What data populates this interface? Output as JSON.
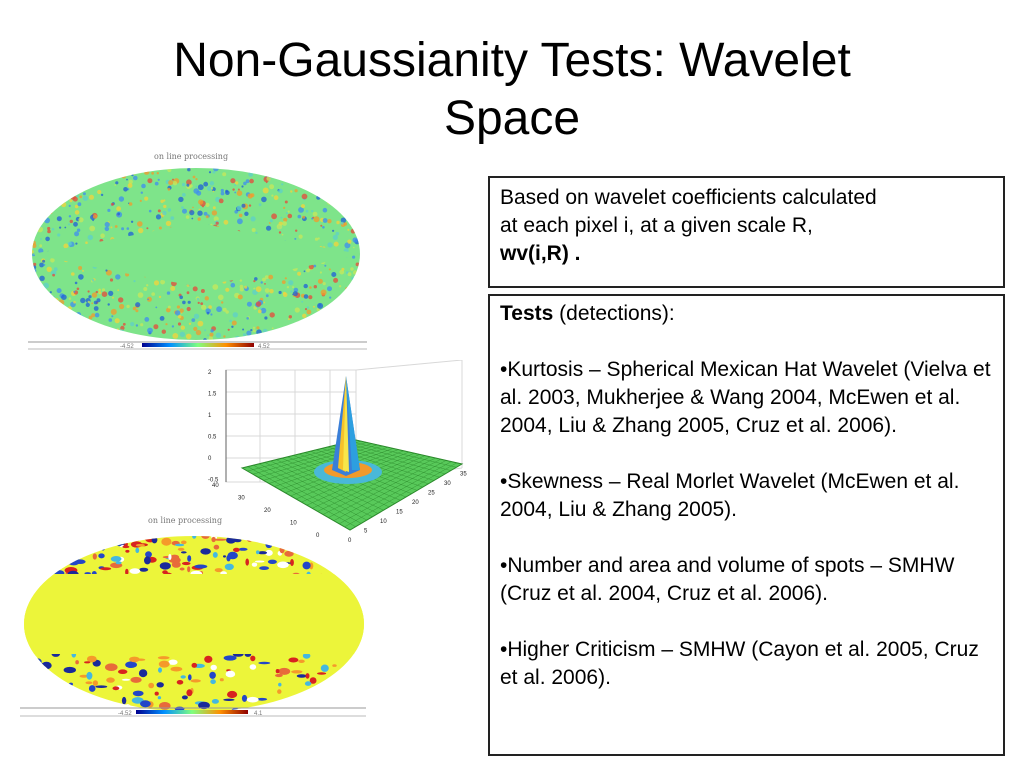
{
  "slide": {
    "title_line1": "Non-Gaussianity Tests: Wavelet",
    "title_line2": "Space"
  },
  "intro_box": {
    "line1": "Based on wavelet coefficients calculated",
    "line2": "at each pixel i, at a given scale R,",
    "line3_bold": "wv(i,R) ."
  },
  "tests_box": {
    "heading_bold": "Tests",
    "heading_rest": " (detections):",
    "items": [
      "•Kurtosis – Spherical Mexican Hat Wavelet (Vielva et al. 2003, Mukherjee & Wang 2004, McEwen et al. 2004, Liu & Zhang 2005, Cruz et al. 2006).",
      "•Skewness – Real Morlet Wavelet (McEwen et al. 2004, Liu & Zhang 2005).",
      "•Number and area and volume of spots – SMHW (Cruz et al. 2004, Cruz et al. 2006).",
      "•Higher Criticism – SMHW (Cayon et al. 2005, Cruz et al. 2006)."
    ]
  },
  "figures": {
    "map_top_caption": "on line processing",
    "map_top_cbar_min": "-4.52",
    "map_top_cbar_max": "4.52",
    "surface_ticks_z": [
      "2",
      "1.5",
      "1",
      "0.5",
      "0",
      "-0.5"
    ],
    "surface_ticks_y": [
      "40",
      "30",
      "20",
      "10",
      "0"
    ],
    "surface_ticks_x": [
      "0",
      "5",
      "10",
      "15",
      "20",
      "25",
      "30",
      "35"
    ],
    "map_bottom_caption": "on line processing",
    "map_bottom_cbar_min": "-4.52",
    "map_bottom_cbar_max": "4.1"
  }
}
